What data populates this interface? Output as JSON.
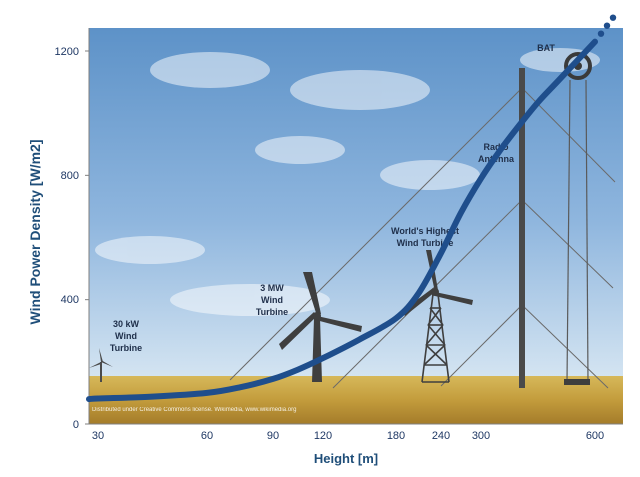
{
  "chart_data": {
    "type": "line",
    "xlabel": "Height [m]",
    "ylabel": "Wind Power Density [W/m2]",
    "x_ticks": [
      "30",
      "60",
      "90",
      "120",
      "180",
      "240",
      "300",
      "600"
    ],
    "y_ticks": [
      "0",
      "400",
      "800",
      "1200"
    ],
    "ylim": [
      0,
      1200
    ],
    "grid": false,
    "series": [
      {
        "x": [
          0,
          30,
          45,
          60,
          75,
          90,
          105,
          120,
          150,
          180,
          210,
          240,
          270,
          300,
          350,
          400,
          450,
          500,
          550,
          600
        ],
        "y": [
          80,
          82,
          88,
          100,
          118,
          145,
          175,
          212,
          272,
          340,
          420,
          550,
          680,
          790,
          880,
          960,
          1035,
          1100,
          1165,
          1230
        ]
      }
    ],
    "annotations": {
      "small_turbine": [
        "30 kW",
        "Wind",
        "Turbine"
      ],
      "mw_turbine": [
        "3 MW",
        "Wind",
        "Turbine"
      ],
      "highest_turbine": [
        "World's Highest",
        "Wind Turbine"
      ],
      "antenna": [
        "Radio",
        "Antenna"
      ],
      "bat": "BAT"
    },
    "photo_credit": "Distributed under Creative Commons license. Wikimedia, www.wikimedia.org"
  },
  "colors": {
    "curve": "#1f4e8c",
    "axis": "#7f7f7f",
    "sky_top": "#5f93c9",
    "sky_bottom": "#d2e3f2",
    "field": "#c9a845"
  }
}
